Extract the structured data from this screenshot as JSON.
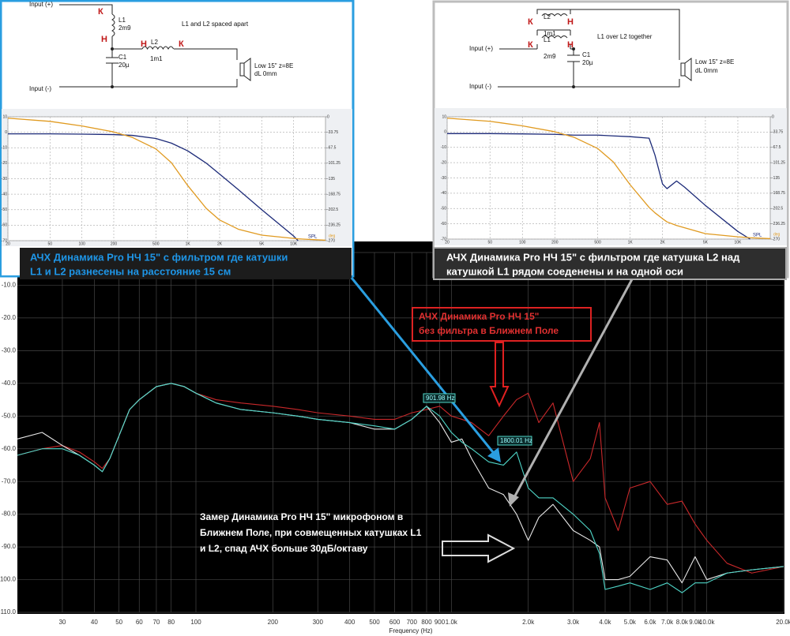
{
  "circuits": [
    {
      "title": "L1 and L2 spaced apart",
      "input_plus": "Input (+)",
      "input_minus": "Input (-)",
      "l1": "L1",
      "l1_value": "2m9",
      "l2": "L2",
      "l2_value": "1m1",
      "c1": "C1",
      "c1_value": "20µ",
      "speaker": "Low   15\"  z=8E",
      "speaker_dl": "dL 0mm",
      "markers": [
        "К",
        "Н",
        "Н",
        "К"
      ]
    },
    {
      "title": "L1 over L2 together",
      "input_plus": "Input (+)",
      "input_minus": "Input (-)",
      "l1": "L1",
      "l1_value": "2m9",
      "l2": "L2",
      "l2_value": "1m1",
      "c1": "C1",
      "c1_value": "20µ",
      "speaker": "Low   15\"  z=8E",
      "speaker_dl": "dL 0mm",
      "markers": [
        "К",
        "Н",
        "К",
        "Н"
      ]
    }
  ],
  "chart_data": [
    {
      "type": "line",
      "x_label": "Frequency (Hz)",
      "xscale": "log",
      "grid": true,
      "xlim": [
        20,
        20000
      ],
      "ylim": [
        0,
        -110
      ],
      "xticks": [
        30,
        40,
        50,
        60,
        70,
        80,
        100,
        200,
        300,
        400,
        500,
        600,
        700,
        800,
        900,
        {
          "value": 1000,
          "label": "1.0k"
        },
        {
          "value": 2000,
          "label": "2.0k"
        },
        {
          "value": 3000,
          "label": "3.0k"
        },
        {
          "value": 4000,
          "label": "4.0k"
        },
        {
          "value": 5000,
          "label": "5.0k"
        },
        {
          "value": 6000,
          "label": "6.0k"
        },
        {
          "value": 7000,
          "label": "7.0k"
        },
        {
          "value": 8000,
          "label": "8.0k"
        },
        {
          "value": 9000,
          "label": "9.0k"
        },
        {
          "value": 10000,
          "label": "10.0k"
        },
        {
          "value": 20000,
          "label": "20.0k"
        }
      ],
      "yticks": [
        {
          "value": 0,
          "label": "0.0"
        },
        {
          "value": -10,
          "label": "-10.0"
        },
        {
          "value": -20,
          "label": "-20.0"
        },
        {
          "value": -30,
          "label": "-30.0"
        },
        {
          "value": -40,
          "label": "-40.0"
        },
        {
          "value": -50,
          "label": "-50.0"
        },
        {
          "value": -60,
          "label": "-60.0"
        },
        {
          "value": -70,
          "label": "-70.0"
        },
        {
          "value": -80,
          "label": "-80.0"
        },
        {
          "value": -90,
          "label": "-90.0"
        },
        {
          "value": -100,
          "label": "-100.0"
        },
        {
          "value": -110,
          "label": "-110.0"
        }
      ],
      "x": [
        20,
        25,
        30,
        35,
        40,
        43,
        46,
        50,
        55,
        60,
        70,
        80,
        90,
        100,
        120,
        150,
        200,
        250,
        300,
        400,
        500,
        600,
        700,
        800,
        900,
        1000,
        1100,
        1200,
        1400,
        1600,
        1800,
        2000,
        2200,
        2500,
        3000,
        3500,
        3800,
        4000,
        4500,
        5000,
        6000,
        7000,
        8000,
        9000,
        10000,
        12000,
        15000,
        20000
      ],
      "series": [
        {
          "color": "#c8282a",
          "values": [
            -62,
            -60,
            -59,
            -61,
            -64,
            -66,
            -63,
            -56,
            -48,
            -45,
            -41,
            -40,
            -41,
            -43,
            -45,
            -46,
            -47,
            -48,
            -49,
            -50,
            -51,
            -51,
            -49,
            -48,
            -47,
            -50,
            -51,
            -52,
            -56,
            -50,
            -45,
            -43,
            -52,
            -46,
            -70,
            -63,
            -52,
            -75,
            -85,
            -72,
            -70,
            -77,
            -76,
            -83,
            -88,
            -95,
            -98,
            -96
          ]
        },
        {
          "color": "#e8e8e8",
          "values": [
            -57,
            -55,
            -59,
            -62,
            -65,
            -67,
            -63,
            -56,
            -48,
            -45,
            -41,
            -40,
            -41,
            -43,
            -46,
            -48,
            -49,
            -50,
            -51,
            -52,
            -54,
            -54,
            -51,
            -47,
            -52,
            -58,
            -57,
            -63,
            -72,
            -74,
            -80,
            -88,
            -81,
            -77,
            -85,
            -88,
            -90,
            -100,
            -100,
            -99,
            -93,
            -94,
            -101,
            -93,
            -100,
            -98,
            -97,
            -96
          ]
        },
        {
          "color": "#4fd6c8",
          "values": [
            -62,
            -60,
            -60,
            -62,
            -65,
            -67,
            -63,
            -56,
            -48,
            -45,
            -41,
            -40,
            -41,
            -43,
            -46,
            -48,
            -49,
            -50,
            -51,
            -52,
            -53,
            -54,
            -51,
            -47,
            -50,
            -55,
            -58,
            -60,
            -64,
            -65,
            -61,
            -72,
            -75,
            -75,
            -80,
            -85,
            -92,
            -103,
            -102,
            -101,
            -103,
            -101,
            -104,
            -101,
            -101,
            -98,
            -97,
            -96
          ]
        }
      ],
      "cursor_labels": [
        "901.98 Hz",
        "1800.01 Hz"
      ],
      "annotations": [
        [
          "АЧХ Динамика Pro НЧ 15\" с фильтром где катушки",
          "L1 и L2 разнесены на расстояние 15 см"
        ],
        [
          "АЧХ Динамика Pro НЧ 15\" с фильтром где катушка L2 над",
          "катушкой L1 рядом соеденены и на одной оси"
        ],
        [
          "АЧХ Динамика Pro НЧ 15\"",
          "без фильтра в Ближнем Поле"
        ],
        [
          "Замер Динамика Pro НЧ 15\" микрофоном в",
          "Ближнем Поле, при совмещенных катушках L1",
          "и L2, спад АЧХ больше 30дБ/октаву"
        ]
      ]
    },
    {
      "type": "line",
      "xscale": "log",
      "grid": true,
      "y_label": "SPL",
      "y2_label": "deg",
      "xlim": [
        20,
        20000
      ],
      "ylim": [
        10,
        -70
      ],
      "y2lim": [
        0,
        -270
      ],
      "xticks": [
        20,
        50,
        100,
        200,
        500,
        {
          "value": 1000,
          "label": "1K"
        },
        {
          "value": 2000,
          "label": "2K"
        },
        {
          "value": 5000,
          "label": "5K"
        },
        {
          "value": 10000,
          "label": "10K"
        }
      ],
      "yticks": [
        10,
        0,
        -10,
        -20,
        -30,
        -40,
        -50,
        -60,
        -70
      ],
      "y2ticks": [
        0,
        -33.75,
        -67.5,
        -101.25,
        -135,
        -168.75,
        -202.5,
        -236.25,
        -270
      ],
      "x": [
        20,
        50,
        100,
        200,
        300,
        500,
        700,
        1000,
        1500,
        2000,
        3000,
        5000,
        10000,
        11000,
        20000
      ],
      "series": [
        {
          "color": "#1c2a78",
          "values": [
            -1,
            -1,
            -1.2,
            -1.5,
            -2,
            -4,
            -7,
            -12,
            -20,
            -27,
            -37,
            -50,
            -67,
            -70,
            null
          ]
        },
        {
          "color": "#e09a20",
          "axis": "y2",
          "values": [
            -3,
            -10,
            -20,
            -33,
            -45,
            -70,
            -100,
            -150,
            -200,
            -225,
            -245,
            -258,
            -265,
            -266,
            -269
          ]
        }
      ]
    },
    {
      "type": "line",
      "xscale": "log",
      "grid": true,
      "y_label": "SPL",
      "y2_label": "deg",
      "xlim": [
        20,
        20000
      ],
      "ylim": [
        10,
        -70
      ],
      "y2lim": [
        0,
        -270
      ],
      "xticks": [
        20,
        50,
        100,
        200,
        500,
        {
          "value": 1000,
          "label": "1K"
        },
        {
          "value": 2000,
          "label": "2K"
        },
        {
          "value": 5000,
          "label": "5K"
        },
        {
          "value": 10000,
          "label": "10K"
        }
      ],
      "yticks": [
        10,
        0,
        -10,
        -20,
        -30,
        -40,
        -50,
        -60,
        -70
      ],
      "y2ticks": [
        0,
        -33.75,
        -67.5,
        -101.25,
        -135,
        -168.75,
        -202.5,
        -236.25,
        -270
      ],
      "x": [
        20,
        50,
        100,
        200,
        300,
        500,
        700,
        1000,
        1500,
        1700,
        2000,
        2200,
        2700,
        3200,
        5000,
        10000,
        13000,
        20000
      ],
      "series": [
        {
          "color": "#1c2a78",
          "values": [
            -1,
            -1,
            -1.2,
            -1.5,
            -2,
            -2,
            -2.5,
            -3,
            -4,
            -15,
            -34,
            -37,
            -32,
            -36,
            -48,
            -65,
            -70,
            null
          ]
        },
        {
          "color": "#e09a20",
          "axis": "y2",
          "values": [
            -3,
            -10,
            -20,
            -33,
            -45,
            -70,
            -100,
            -150,
            -200,
            -212,
            -225,
            -232,
            -240,
            -245,
            -258,
            -265,
            -267,
            -269
          ]
        }
      ]
    }
  ]
}
